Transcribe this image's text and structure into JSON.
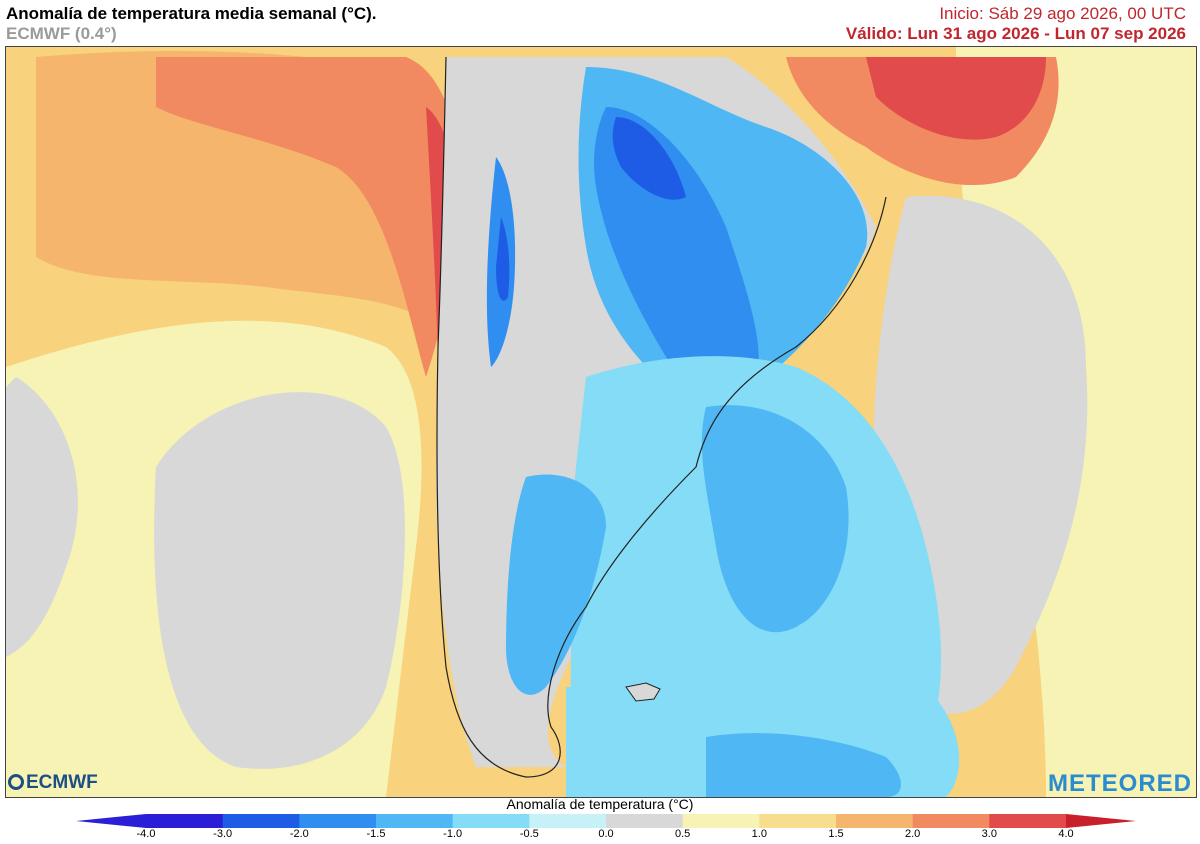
{
  "header": {
    "title": "Anomalía de temperatura media semanal (°C).",
    "subtitle": "ECMWF (0.4°)",
    "init": "Inicio: Sáb 29 ago 2026, 00 UTC",
    "valid": "Válido: Lun 31 ago 2026 - Lun 07 sep 2026"
  },
  "logos": {
    "left": "ECMWF",
    "right": "METEORED"
  },
  "colorbar": {
    "title": "Anomalía de temperatura (°C)",
    "ticks": [
      "-4.0",
      "-3.0",
      "-2.0",
      "-1.5",
      "-1.0",
      "-0.5",
      "0.0",
      "0.5",
      "1.0",
      "1.5",
      "2.0",
      "3.0",
      "4.0"
    ],
    "colors": [
      "#2a1fd6",
      "#1f5ce6",
      "#2f8ef0",
      "#4fb8f4",
      "#84dcf6",
      "#c6f1f6",
      "#d8d8d8",
      "#f6f3b4",
      "#f7de8e",
      "#f6b56c",
      "#f18a60",
      "#e14b4b",
      "#c81f2b"
    ]
  },
  "colors": {
    "accent": "#c0262d",
    "ocean_warm": "#f8d27c",
    "land_neutral": "#d8d8d8"
  }
}
